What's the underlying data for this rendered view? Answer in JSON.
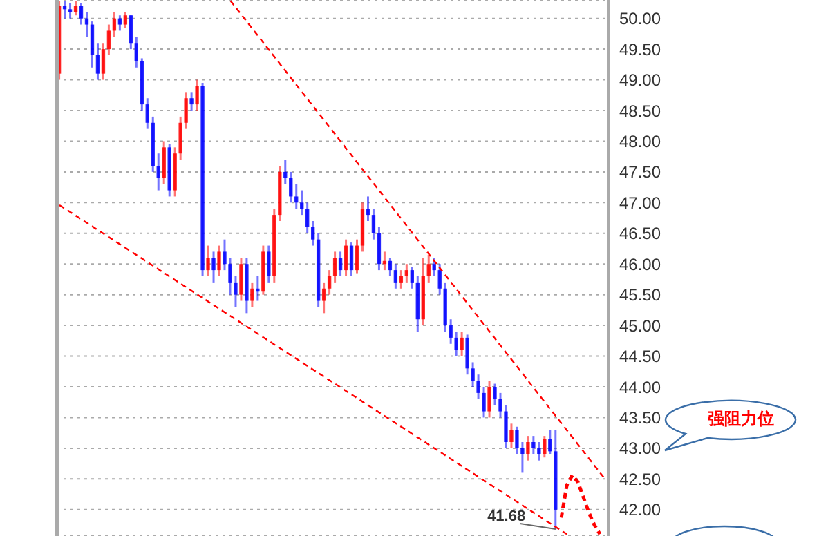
{
  "chart_data": {
    "type": "candlestick",
    "categories": [
      null,
      null,
      null,
      null,
      null,
      null,
      null,
      null,
      null,
      null,
      null,
      null,
      null,
      null,
      null,
      null,
      null,
      null,
      null,
      null,
      null,
      null,
      null,
      null,
      null,
      null,
      null,
      null,
      null,
      null,
      null,
      null,
      null,
      null,
      null,
      null,
      null,
      null,
      null,
      null,
      null,
      null,
      null,
      null,
      null,
      null,
      null,
      null,
      null,
      null,
      null,
      null,
      null,
      null,
      null,
      null,
      null,
      null,
      null,
      null,
      null,
      null,
      null,
      null,
      null,
      null,
      null,
      null,
      null,
      null,
      null,
      null,
      null,
      null,
      null,
      null,
      null,
      null,
      null,
      null,
      null,
      null,
      null,
      null,
      null,
      null,
      null,
      null,
      null,
      null,
      null,
      null,
      null,
      null,
      null,
      null,
      null,
      null,
      null,
      null
    ],
    "ohlc": [
      [
        49.1,
        50.28,
        49.0,
        50.2
      ],
      [
        50.2,
        50.28,
        50.0,
        50.15
      ],
      [
        50.15,
        50.25,
        50.0,
        50.1
      ],
      [
        50.1,
        50.28,
        50.05,
        50.2
      ],
      [
        50.2,
        50.25,
        49.9,
        50.0
      ],
      [
        50.0,
        50.1,
        49.7,
        49.9
      ],
      [
        49.9,
        49.95,
        49.2,
        49.4
      ],
      [
        49.4,
        49.6,
        49.0,
        49.1
      ],
      [
        49.1,
        49.6,
        49.0,
        49.5
      ],
      [
        49.5,
        49.9,
        49.4,
        49.8
      ],
      [
        49.8,
        50.1,
        49.7,
        50.0
      ],
      [
        50.0,
        50.05,
        49.8,
        49.9
      ],
      [
        49.9,
        50.1,
        49.85,
        50.05
      ],
      [
        50.05,
        50.05,
        49.5,
        49.6
      ],
      [
        49.6,
        49.7,
        49.2,
        49.3
      ],
      [
        49.3,
        49.35,
        48.5,
        48.6
      ],
      [
        48.6,
        48.7,
        48.2,
        48.3
      ],
      [
        48.3,
        48.4,
        47.5,
        47.6
      ],
      [
        47.6,
        47.8,
        47.2,
        47.4
      ],
      [
        47.4,
        48.0,
        47.3,
        47.9
      ],
      [
        47.9,
        47.95,
        47.1,
        47.2
      ],
      [
        47.2,
        47.9,
        47.1,
        47.8
      ],
      [
        47.8,
        48.4,
        47.7,
        48.3
      ],
      [
        48.3,
        48.8,
        48.2,
        48.7
      ],
      [
        48.7,
        48.8,
        48.5,
        48.6
      ],
      [
        48.6,
        49.0,
        48.5,
        48.9
      ],
      [
        48.9,
        48.95,
        45.8,
        45.9
      ],
      [
        45.9,
        46.3,
        45.8,
        46.1
      ],
      [
        46.1,
        46.2,
        45.7,
        45.9
      ],
      [
        45.9,
        46.3,
        45.8,
        46.2
      ],
      [
        46.2,
        46.4,
        45.9,
        46.0
      ],
      [
        46.0,
        46.1,
        45.5,
        45.7
      ],
      [
        45.7,
        45.8,
        45.3,
        45.5
      ],
      [
        45.5,
        46.1,
        45.4,
        46.0
      ],
      [
        46.0,
        46.1,
        45.2,
        45.4
      ],
      [
        45.4,
        45.7,
        45.3,
        45.6
      ],
      [
        45.6,
        45.8,
        45.4,
        45.55
      ],
      [
        45.55,
        46.3,
        45.5,
        46.2
      ],
      [
        46.2,
        46.3,
        45.7,
        45.8
      ],
      [
        45.8,
        46.9,
        45.7,
        46.8
      ],
      [
        46.8,
        47.6,
        46.7,
        47.5
      ],
      [
        47.5,
        47.7,
        47.3,
        47.4
      ],
      [
        47.4,
        47.5,
        47.0,
        47.1
      ],
      [
        47.1,
        47.3,
        46.9,
        47.0
      ],
      [
        47.0,
        47.2,
        46.8,
        46.9
      ],
      [
        46.9,
        47.0,
        46.5,
        46.6
      ],
      [
        46.6,
        46.7,
        46.3,
        46.4
      ],
      [
        46.4,
        46.5,
        45.3,
        45.4
      ],
      [
        45.4,
        45.7,
        45.2,
        45.6
      ],
      [
        45.6,
        45.9,
        45.5,
        45.8
      ],
      [
        45.8,
        46.2,
        45.7,
        46.1
      ],
      [
        46.1,
        46.2,
        45.8,
        45.9
      ],
      [
        45.9,
        46.4,
        45.8,
        46.3
      ],
      [
        46.3,
        46.35,
        45.8,
        45.9
      ],
      [
        45.9,
        46.4,
        45.85,
        46.3
      ],
      [
        46.3,
        47.0,
        46.2,
        46.9
      ],
      [
        46.9,
        47.1,
        46.7,
        46.8
      ],
      [
        46.8,
        46.9,
        46.4,
        46.5
      ],
      [
        46.5,
        46.6,
        45.9,
        46.0
      ],
      [
        46.0,
        46.2,
        45.9,
        46.05
      ],
      [
        46.05,
        46.1,
        45.8,
        45.9
      ],
      [
        45.9,
        46.0,
        45.6,
        45.7
      ],
      [
        45.7,
        45.9,
        45.6,
        45.8
      ],
      [
        45.8,
        46.0,
        45.7,
        45.9
      ],
      [
        45.9,
        45.95,
        45.6,
        45.7
      ],
      [
        45.7,
        45.8,
        44.9,
        45.1
      ],
      [
        45.1,
        46.1,
        45.0,
        45.8
      ],
      [
        45.8,
        46.15,
        45.7,
        46.0
      ],
      [
        46.0,
        46.1,
        45.8,
        45.9
      ],
      [
        45.9,
        46.0,
        45.5,
        45.6
      ],
      [
        45.6,
        45.7,
        44.9,
        45.0
      ],
      [
        45.0,
        45.1,
        44.7,
        44.8
      ],
      [
        44.8,
        44.9,
        44.5,
        44.6
      ],
      [
        44.6,
        44.9,
        44.5,
        44.8
      ],
      [
        44.8,
        44.85,
        44.2,
        44.3
      ],
      [
        44.3,
        44.4,
        44.0,
        44.1
      ],
      [
        44.1,
        44.2,
        43.8,
        43.9
      ],
      [
        43.9,
        44.0,
        43.5,
        43.6
      ],
      [
        43.6,
        44.1,
        43.5,
        44.0
      ],
      [
        44.0,
        44.05,
        43.7,
        43.8
      ],
      [
        43.8,
        43.9,
        43.5,
        43.6
      ],
      [
        43.6,
        43.7,
        43.0,
        43.1
      ],
      [
        43.1,
        43.4,
        43.0,
        43.3
      ],
      [
        43.3,
        43.35,
        42.9,
        43.0
      ],
      [
        43.0,
        43.1,
        42.6,
        42.9
      ],
      [
        42.9,
        43.2,
        42.8,
        43.1
      ],
      [
        43.1,
        43.2,
        42.9,
        43.0
      ],
      [
        43.0,
        43.1,
        42.8,
        42.9
      ],
      [
        42.9,
        43.2,
        42.85,
        43.15
      ],
      [
        43.15,
        43.3,
        42.9,
        42.95
      ],
      [
        42.95,
        43.3,
        41.68,
        42.0
      ],
      null,
      null,
      null,
      null,
      null,
      null,
      null,
      null,
      null
    ],
    "colors": [
      "#ff0000",
      "#0000ff",
      "#0000ff",
      "#ff0000",
      "#0000ff",
      "#0000ff",
      "#0000ff",
      "#0000ff",
      "#ff0000",
      "#ff0000",
      "#ff0000",
      "#0000ff",
      "#ff0000",
      "#0000ff",
      "#0000ff",
      "#0000ff",
      "#0000ff",
      "#0000ff",
      "#0000ff",
      "#ff0000",
      "#0000ff",
      "#ff0000",
      "#ff0000",
      "#ff0000",
      "#0000ff",
      "#ff0000",
      "#0000ff",
      "#ff0000",
      "#0000ff",
      "#ff0000",
      "#0000ff",
      "#0000ff",
      "#0000ff",
      "#ff0000",
      "#0000ff",
      "#ff0000",
      "#0000ff",
      "#ff0000",
      "#0000ff",
      "#ff0000",
      "#ff0000",
      "#0000ff",
      "#0000ff",
      "#0000ff",
      "#0000ff",
      "#0000ff",
      "#0000ff",
      "#0000ff",
      "#ff0000",
      "#ff0000",
      "#ff0000",
      "#0000ff",
      "#ff0000",
      "#0000ff",
      "#ff0000",
      "#ff0000",
      "#0000ff",
      "#0000ff",
      "#0000ff",
      "#ff0000",
      "#0000ff",
      "#0000ff",
      "#ff0000",
      "#ff0000",
      "#0000ff",
      "#0000ff",
      "#ff0000",
      "#ff0000",
      "#0000ff",
      "#0000ff",
      "#0000ff",
      "#0000ff",
      "#0000ff",
      "#ff0000",
      "#0000ff",
      "#0000ff",
      "#0000ff",
      "#0000ff",
      "#ff0000",
      "#0000ff",
      "#0000ff",
      "#0000ff",
      "#ff0000",
      "#0000ff",
      "#0000ff",
      "#ff0000",
      "#0000ff",
      "#0000ff",
      "#ff0000",
      "#0000ff",
      "#0000ff",
      null,
      null,
      null,
      null,
      null,
      null,
      null,
      null,
      null
    ],
    "series": [
      {
        "type": "line",
        "color": "#ff0000",
        "line_style": "dashed",
        "values": [
          null,
          null,
          null,
          null,
          null,
          null,
          null,
          null,
          null,
          null,
          null,
          null,
          null,
          null,
          null,
          null,
          null,
          null,
          null,
          null,
          null,
          null,
          null,
          null,
          null,
          null,
          null,
          null,
          null,
          null,
          null,
          50.29,
          null,
          null,
          null,
          null,
          null,
          null,
          null,
          null,
          null,
          null,
          null,
          null,
          null,
          null,
          null,
          null,
          null,
          null,
          null,
          null,
          null,
          null,
          null,
          null,
          null,
          null,
          null,
          null,
          null,
          null,
          null,
          null,
          null,
          null,
          null,
          null,
          null,
          null,
          null,
          null,
          null,
          null,
          null,
          null,
          null,
          null,
          null,
          null,
          null,
          null,
          null,
          null,
          null,
          null,
          null,
          null,
          null,
          null,
          null,
          null,
          null,
          null,
          null,
          null,
          null,
          null,
          null,
          42.49
        ]
      },
      {
        "type": "line",
        "color": "#ff0000",
        "line_style": "dashed",
        "values": [
          46.96,
          null,
          null,
          null,
          null,
          null,
          null,
          null,
          null,
          null,
          null,
          null,
          null,
          null,
          null,
          null,
          null,
          null,
          null,
          null,
          null,
          null,
          null,
          null,
          null,
          null,
          null,
          null,
          null,
          null,
          null,
          null,
          null,
          null,
          null,
          null,
          null,
          null,
          null,
          null,
          null,
          null,
          null,
          null,
          null,
          null,
          null,
          null,
          null,
          null,
          null,
          null,
          null,
          null,
          null,
          null,
          null,
          null,
          null,
          null,
          null,
          null,
          null,
          null,
          null,
          null,
          null,
          null,
          null,
          null,
          null,
          null,
          null,
          null,
          null,
          null,
          null,
          null,
          null,
          null,
          null,
          null,
          null,
          null,
          null,
          null,
          null,
          null,
          null,
          null,
          null,
          null,
          41.6,
          null,
          null,
          null,
          null,
          null,
          null,
          null
        ]
      },
      {
        "type": "line",
        "color": "#ff0000",
        "line_style": "dashed",
        "values": [
          null,
          null,
          null,
          null,
          null,
          null,
          null,
          null,
          null,
          null,
          null,
          null,
          null,
          null,
          null,
          null,
          null,
          null,
          null,
          null,
          null,
          null,
          null,
          null,
          null,
          null,
          null,
          null,
          null,
          null,
          null,
          null,
          null,
          null,
          null,
          null,
          null,
          null,
          null,
          null,
          null,
          null,
          null,
          null,
          null,
          null,
          null,
          null,
          null,
          null,
          null,
          null,
          null,
          null,
          null,
          null,
          null,
          null,
          null,
          null,
          null,
          null,
          null,
          null,
          null,
          null,
          null,
          null,
          null,
          null,
          null,
          null,
          null,
          null,
          null,
          null,
          null,
          null,
          null,
          null,
          null,
          null,
          null,
          null,
          null,
          null,
          null,
          null,
          null,
          null,
          null,
          41.87,
          42.4,
          42.56,
          42.45,
          42.2,
          41.95,
          41.75,
          41.6,
          null
        ]
      }
    ],
    "ylim": [
      41.57,
      50.3
    ],
    "yticks": [
      {
        "value": 42,
        "label": "42.00"
      },
      {
        "value": 42.5,
        "label": "42.50"
      },
      {
        "value": 43,
        "label": "43.00"
      },
      {
        "value": 43.5,
        "label": "43.50"
      },
      {
        "value": 44,
        "label": "44.00"
      },
      {
        "value": 44.5,
        "label": "44.50"
      },
      {
        "value": 45,
        "label": "45.00"
      },
      {
        "value": 45.5,
        "label": "45.50"
      },
      {
        "value": 46,
        "label": "46.00"
      },
      {
        "value": 46.5,
        "label": "46.50"
      },
      {
        "value": 47,
        "label": "47.00"
      },
      {
        "value": 47.5,
        "label": "47.50"
      },
      {
        "value": 48,
        "label": "48.00"
      },
      {
        "value": 48.5,
        "label": "48.50"
      },
      {
        "value": 49,
        "label": "49.00"
      },
      {
        "value": 49.5,
        "label": "49.50"
      },
      {
        "value": 50,
        "label": "50.00"
      }
    ],
    "grid": "y",
    "tick_labels": "y",
    "legend": false,
    "annotations": [
      "41.68",
      "强阻力位"
    ]
  }
}
